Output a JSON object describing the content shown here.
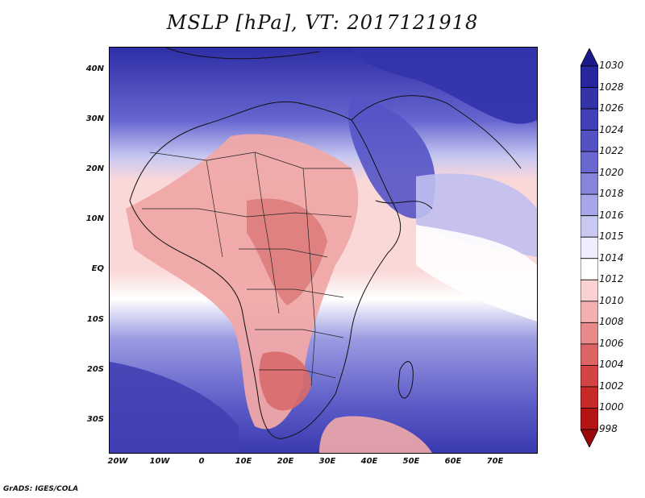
{
  "title": "MSLP [hPa], VT: 2017121918",
  "credit": "GrADS: IGES/COLA",
  "y_axis_labels": [
    "40N",
    "30N",
    "20N",
    "10N",
    "EQ",
    "10S",
    "20S",
    "30S"
  ],
  "x_axis_labels": [
    "20W",
    "10W",
    "0",
    "10E",
    "20E",
    "30E",
    "40E",
    "50E",
    "60E",
    "70E"
  ],
  "colorbar": {
    "labels": [
      "1030",
      "1028",
      "1026",
      "1024",
      "1022",
      "1020",
      "1018",
      "1016",
      "1015",
      "1014",
      "1012",
      "1010",
      "1008",
      "1006",
      "1004",
      "1002",
      "1000",
      "998"
    ],
    "colors": [
      "#1a1a8c",
      "#26269e",
      "#3333aa",
      "#4040b8",
      "#5252c4",
      "#6868d0",
      "#8585dc",
      "#a6a6e8",
      "#c8c8f2",
      "#eeeeff",
      "#ffffff",
      "#fbd2d2",
      "#f3b0b0",
      "#e68a8a",
      "#dc6464",
      "#d44444",
      "#c82a2a",
      "#b41414",
      "#9a0a0a"
    ]
  },
  "field_colors": {
    "ocean_deep_high": "#2a2aa0",
    "high": "#5050c4",
    "mid_high": "#8080dc",
    "light_high": "#b4b4ee",
    "neutral": "#ffffff",
    "light_low": "#fbd8d8",
    "low": "#f0aaaa",
    "deep_low": "#dd7878"
  }
}
